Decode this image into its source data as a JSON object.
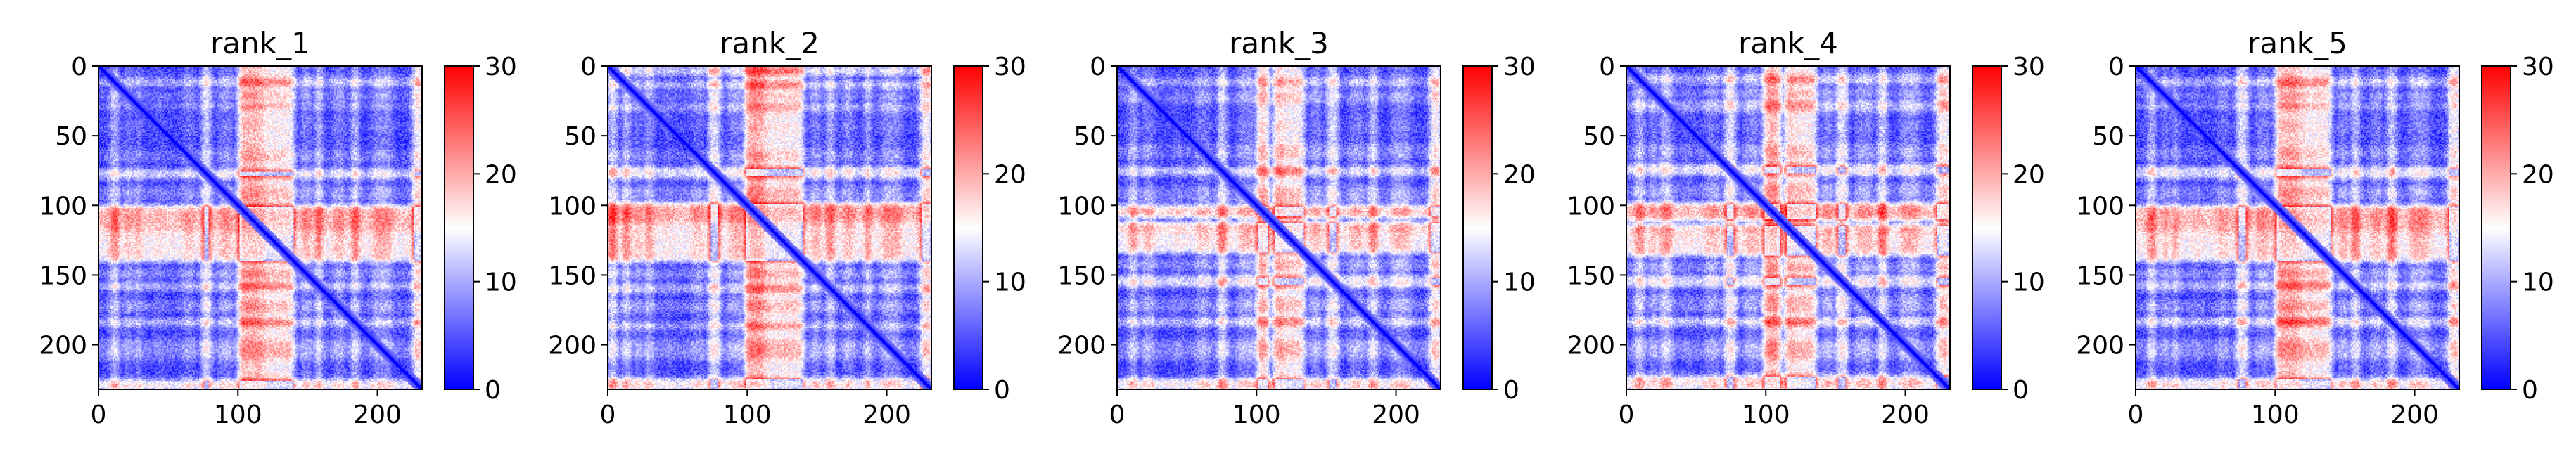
{
  "chart_data": [
    {
      "type": "heatmap",
      "title": "rank_1",
      "xlabel": "",
      "ylabel": "",
      "x_ticks": [
        "0",
        "100",
        "200"
      ],
      "y_ticks": [
        "0",
        "50",
        "100",
        "150",
        "200"
      ],
      "xlim": [
        0,
        232
      ],
      "ylim": [
        232,
        0
      ],
      "colorbar": {
        "ticks": [
          "0",
          "10",
          "20",
          "30"
        ],
        "range": [
          0,
          30
        ],
        "colors": [
          "#0000ff",
          "#ffffff",
          "#ff0000"
        ]
      },
      "matrix_size": 232,
      "red_bands": [
        [
          8,
          14,
          18
        ],
        [
          26,
          30,
          12
        ],
        [
          74,
          80,
          24
        ],
        [
          100,
          140,
          29
        ],
        [
          155,
          160,
          20
        ],
        [
          181,
          186,
          20
        ],
        [
          225,
          232,
          30
        ]
      ],
      "light_bands": [
        [
          18,
          24,
          10
        ],
        [
          60,
          68,
          9
        ],
        [
          86,
          95,
          11
        ],
        [
          145,
          152,
          12
        ],
        [
          168,
          176,
          11
        ],
        [
          196,
          210,
          9
        ]
      ],
      "light_columns": [
        [
          98,
          118,
          7
        ],
        [
          40,
          46,
          3
        ],
        [
          196,
          210,
          3
        ]
      ]
    },
    {
      "type": "heatmap",
      "title": "rank_2",
      "xlabel": "",
      "ylabel": "",
      "x_ticks": [
        "0",
        "100",
        "200"
      ],
      "y_ticks": [
        "0",
        "50",
        "100",
        "150",
        "200"
      ],
      "xlim": [
        0,
        232
      ],
      "ylim": [
        232,
        0
      ],
      "colorbar": {
        "ticks": [
          "0",
          "10",
          "20",
          "30"
        ],
        "range": [
          0,
          30
        ],
        "colors": [
          "#0000ff",
          "#ffffff",
          "#ff0000"
        ]
      },
      "matrix_size": 232,
      "red_bands": [
        [
          0,
          6,
          22
        ],
        [
          10,
          16,
          18
        ],
        [
          26,
          32,
          14
        ],
        [
          72,
          80,
          25
        ],
        [
          98,
          140,
          29
        ],
        [
          156,
          162,
          18
        ],
        [
          184,
          188,
          18
        ],
        [
          224,
          232,
          30
        ]
      ],
      "light_bands": [
        [
          18,
          24,
          10
        ],
        [
          60,
          68,
          9
        ],
        [
          86,
          95,
          11
        ],
        [
          145,
          152,
          12
        ],
        [
          168,
          176,
          11
        ],
        [
          196,
          210,
          9
        ]
      ],
      "light_columns": [
        [
          96,
          112,
          9
        ],
        [
          40,
          46,
          3
        ],
        [
          196,
          210,
          3
        ]
      ]
    },
    {
      "type": "heatmap",
      "title": "rank_3",
      "xlabel": "",
      "ylabel": "",
      "x_ticks": [
        "0",
        "100",
        "200"
      ],
      "y_ticks": [
        "0",
        "50",
        "100",
        "150",
        "200"
      ],
      "xlim": [
        0,
        232
      ],
      "ylim": [
        232,
        0
      ],
      "colorbar": {
        "ticks": [
          "0",
          "10",
          "20",
          "30"
        ],
        "range": [
          0,
          30
        ],
        "colors": [
          "#0000ff",
          "#ffffff",
          "#ff0000"
        ]
      },
      "matrix_size": 232,
      "red_bands": [
        [
          8,
          14,
          16
        ],
        [
          72,
          78,
          22
        ],
        [
          100,
          108,
          28
        ],
        [
          112,
          134,
          28
        ],
        [
          150,
          158,
          24
        ],
        [
          180,
          186,
          20
        ],
        [
          224,
          232,
          30
        ]
      ],
      "light_bands": [
        [
          18,
          26,
          11
        ],
        [
          56,
          66,
          10
        ],
        [
          86,
          96,
          11
        ],
        [
          138,
          146,
          12
        ],
        [
          166,
          176,
          11
        ],
        [
          196,
          210,
          9
        ]
      ],
      "light_columns": [
        [
          96,
          118,
          6
        ],
        [
          40,
          46,
          3
        ],
        [
          196,
          210,
          3
        ]
      ]
    },
    {
      "type": "heatmap",
      "title": "rank_4",
      "xlabel": "",
      "ylabel": "",
      "x_ticks": [
        "0",
        "100",
        "200"
      ],
      "y_ticks": [
        "0",
        "50",
        "100",
        "150",
        "200"
      ],
      "xlim": [
        0,
        232
      ],
      "ylim": [
        232,
        0
      ],
      "colorbar": {
        "ticks": [
          "0",
          "10",
          "20",
          "30"
        ],
        "range": [
          0,
          30
        ],
        "colors": [
          "#0000ff",
          "#ffffff",
          "#ff0000"
        ]
      },
      "matrix_size": 232,
      "red_bands": [
        [
          6,
          12,
          18
        ],
        [
          24,
          32,
          16
        ],
        [
          70,
          78,
          24
        ],
        [
          98,
          110,
          29
        ],
        [
          114,
          136,
          29
        ],
        [
          150,
          158,
          24
        ],
        [
          180,
          186,
          22
        ],
        [
          222,
          232,
          30
        ]
      ],
      "light_bands": [
        [
          16,
          22,
          11
        ],
        [
          56,
          66,
          10
        ],
        [
          84,
          94,
          11
        ],
        [
          140,
          148,
          12
        ],
        [
          164,
          176,
          11
        ],
        [
          196,
          210,
          9
        ]
      ],
      "light_columns": [
        [
          96,
          118,
          7
        ],
        [
          40,
          46,
          3
        ],
        [
          196,
          210,
          3
        ]
      ]
    },
    {
      "type": "heatmap",
      "title": "rank_5",
      "xlabel": "",
      "ylabel": "",
      "x_ticks": [
        "0",
        "100",
        "200"
      ],
      "y_ticks": [
        "0",
        "50",
        "100",
        "150",
        "200"
      ],
      "xlim": [
        0,
        232
      ],
      "ylim": [
        232,
        0
      ],
      "colorbar": {
        "ticks": [
          "0",
          "10",
          "20",
          "30"
        ],
        "range": [
          0,
          30
        ],
        "colors": [
          "#0000ff",
          "#ffffff",
          "#ff0000"
        ]
      },
      "matrix_size": 232,
      "red_bands": [
        [
          8,
          14,
          18
        ],
        [
          26,
          30,
          14
        ],
        [
          72,
          80,
          24
        ],
        [
          100,
          140,
          29
        ],
        [
          154,
          160,
          20
        ],
        [
          180,
          186,
          22
        ],
        [
          224,
          232,
          30
        ]
      ],
      "light_bands": [
        [
          18,
          24,
          10
        ],
        [
          58,
          66,
          9
        ],
        [
          86,
          95,
          11
        ],
        [
          145,
          152,
          12
        ],
        [
          168,
          176,
          11
        ],
        [
          196,
          210,
          9
        ]
      ],
      "light_columns": [
        [
          98,
          118,
          7
        ],
        [
          40,
          46,
          3
        ],
        [
          196,
          210,
          3
        ]
      ]
    }
  ]
}
